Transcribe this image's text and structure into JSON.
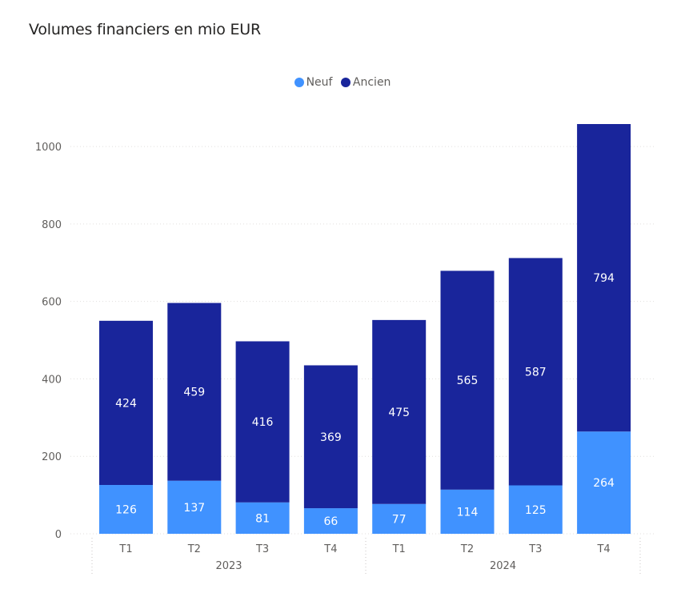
{
  "title": "Volumes financiers en mio EUR",
  "colors": {
    "neuf": "#4092ff",
    "ancien": "#19259b"
  },
  "legend": [
    {
      "label": "Neuf",
      "color": "#4092ff"
    },
    {
      "label": "Ancien",
      "color": "#19259b"
    }
  ],
  "chart_data": {
    "type": "bar",
    "stacked": true,
    "title": "Volumes financiers en mio EUR",
    "categories": [
      "T1",
      "T2",
      "T3",
      "T4",
      "T1",
      "T2",
      "T3",
      "T4"
    ],
    "groups": [
      {
        "label": "2023",
        "categories": [
          "T1",
          "T2",
          "T3",
          "T4"
        ]
      },
      {
        "label": "2024",
        "categories": [
          "T1",
          "T2",
          "T3",
          "T4"
        ]
      }
    ],
    "series": [
      {
        "name": "Neuf",
        "values": [
          126,
          137,
          81,
          66,
          77,
          114,
          125,
          264
        ]
      },
      {
        "name": "Ancien",
        "values": [
          424,
          459,
          416,
          369,
          475,
          565,
          587,
          794
        ]
      }
    ],
    "yticks": [
      0,
      200,
      400,
      600,
      800,
      1000
    ],
    "ylim": [
      0,
      1058
    ],
    "grid": true,
    "legend_position": "top-center"
  }
}
